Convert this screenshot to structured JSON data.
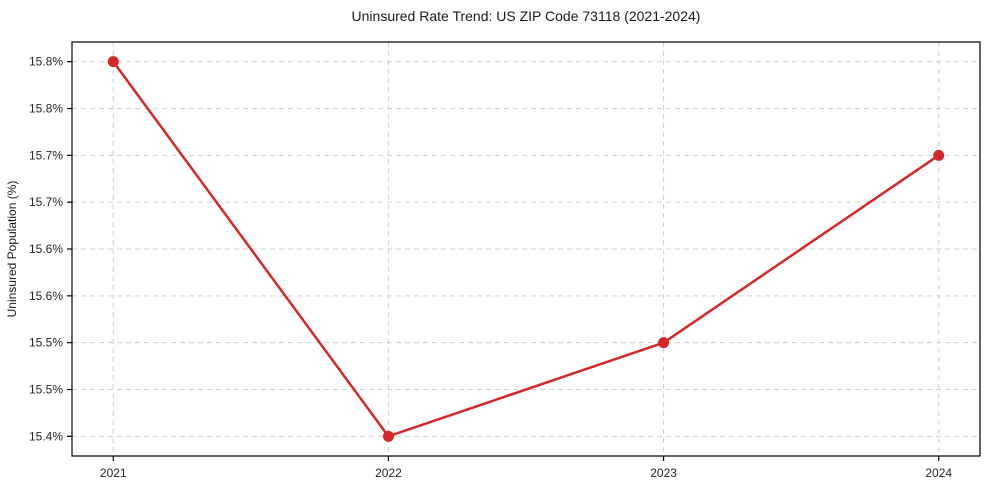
{
  "chart_data": {
    "type": "line",
    "title": "Uninsured Rate Trend: US ZIP Code 73118 (2021-2024)",
    "xlabel": "",
    "ylabel": "Uninsured Population (%)",
    "categories": [
      "2021",
      "2022",
      "2023",
      "2024"
    ],
    "series": [
      {
        "name": "Uninsured Population (%)",
        "values": [
          15.8,
          15.4,
          15.5,
          15.7
        ]
      }
    ],
    "y_ticks": [
      15.4,
      15.45,
      15.5,
      15.55,
      15.6,
      15.65,
      15.7,
      15.75,
      15.8
    ],
    "y_tick_labels": [
      "15.4%",
      "15.5%",
      "15.5%",
      "15.6%",
      "15.6%",
      "15.7%",
      "15.7%",
      "15.8%",
      "15.8%"
    ],
    "ylim": [
      15.379,
      15.821
    ],
    "grid": true,
    "grid_style": "dashed",
    "legend": "none",
    "line_color": "#d62728",
    "marker_color": "#d62728",
    "grid_color": "#d0d0d0",
    "spine_color": "#000000",
    "background_color": "#ffffff"
  }
}
